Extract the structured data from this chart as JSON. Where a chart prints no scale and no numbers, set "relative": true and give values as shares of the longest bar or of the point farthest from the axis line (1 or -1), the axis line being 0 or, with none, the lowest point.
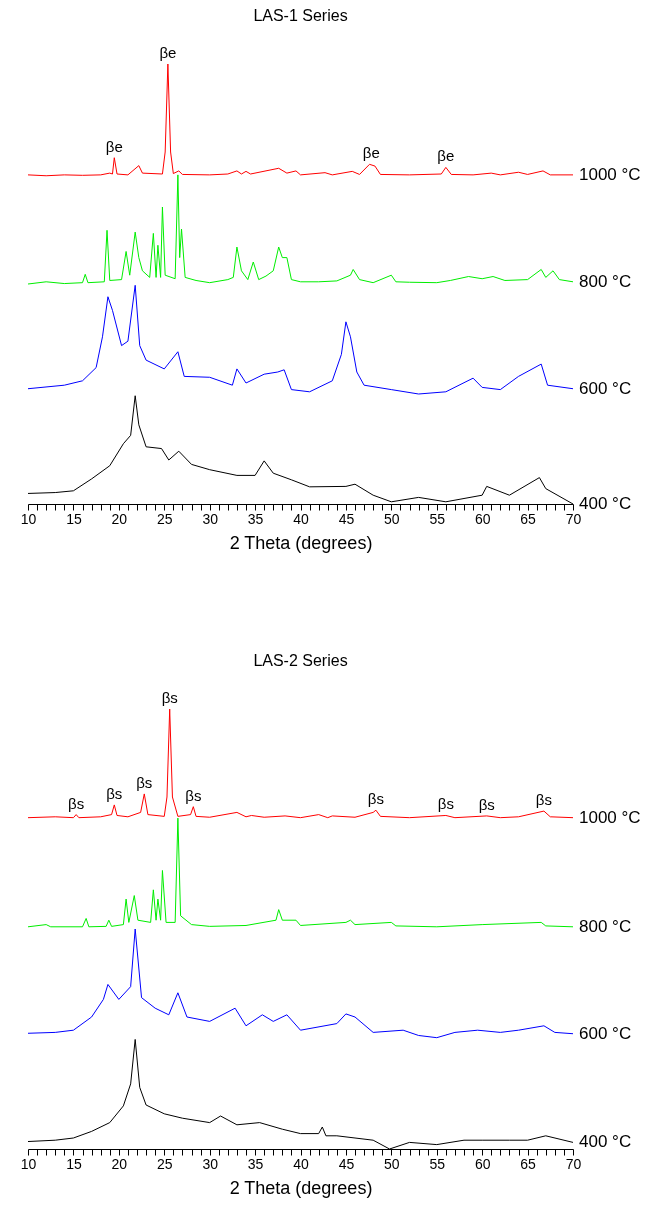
{
  "chart_data": [
    {
      "type": "line",
      "title": "LAS-1 Series",
      "xlabel": "2 Theta (degrees)",
      "relative": true,
      "xlim": [
        10,
        70
      ],
      "xticks": [
        10,
        {
          "value": 11,
          "label": null
        },
        {
          "value": 12,
          "label": null
        },
        {
          "value": 13,
          "label": null
        },
        {
          "value": 14,
          "label": null
        },
        15,
        {
          "value": 16,
          "label": null
        },
        {
          "value": 17,
          "label": null
        },
        {
          "value": 18,
          "label": null
        },
        {
          "value": 19,
          "label": null
        },
        20,
        {
          "value": 21,
          "label": null
        },
        {
          "value": 22,
          "label": null
        },
        {
          "value": 23,
          "label": null
        },
        {
          "value": 24,
          "label": null
        },
        25,
        {
          "value": 26,
          "label": null
        },
        {
          "value": 27,
          "label": null
        },
        {
          "value": 28,
          "label": null
        },
        {
          "value": 29,
          "label": null
        },
        30,
        {
          "value": 31,
          "label": null
        },
        {
          "value": 32,
          "label": null
        },
        {
          "value": 33,
          "label": null
        },
        {
          "value": 34,
          "label": null
        },
        35,
        {
          "value": 36,
          "label": null
        },
        {
          "value": 37,
          "label": null
        },
        {
          "value": 38,
          "label": null
        },
        {
          "value": 39,
          "label": null
        },
        40,
        {
          "value": 41,
          "label": null
        },
        {
          "value": 42,
          "label": null
        },
        {
          "value": 43,
          "label": null
        },
        {
          "value": 44,
          "label": null
        },
        45,
        {
          "value": 46,
          "label": null
        },
        {
          "value": 47,
          "label": null
        },
        {
          "value": 48,
          "label": null
        },
        {
          "value": 49,
          "label": null
        },
        50,
        {
          "value": 51,
          "label": null
        },
        {
          "value": 52,
          "label": null
        },
        {
          "value": 53,
          "label": null
        },
        {
          "value": 54,
          "label": null
        },
        55,
        {
          "value": 56,
          "label": null
        },
        {
          "value": 57,
          "label": null
        },
        {
          "value": 58,
          "label": null
        },
        {
          "value": 59,
          "label": null
        },
        60,
        {
          "value": 61,
          "label": null
        },
        {
          "value": 62,
          "label": null
        },
        {
          "value": 63,
          "label": null
        },
        {
          "value": 64,
          "label": null
        },
        65,
        {
          "value": 66,
          "label": null
        },
        {
          "value": 67,
          "label": null
        },
        {
          "value": 68,
          "label": null
        },
        {
          "value": 69,
          "label": null
        },
        70
      ],
      "series": [
        {
          "name": "1000 °C",
          "color": "#ff0000",
          "x": [
            10,
            12,
            14,
            16,
            18,
            19,
            19.3,
            19.5,
            19.8,
            21,
            22.2,
            22.6,
            24.8,
            25.1,
            25.4,
            25.7,
            26,
            26.6,
            27,
            30,
            32,
            33,
            33.5,
            34,
            34.5,
            37.6,
            38.5,
            39.5,
            40,
            42.7,
            43.5,
            45.7,
            46.5,
            47.6,
            48.2,
            48.8,
            52,
            55.5,
            56,
            56.6,
            59,
            61,
            62,
            64,
            65,
            66.7,
            67.5,
            70
          ],
          "values": [
            0.748,
            0.746,
            0.748,
            0.747,
            0.748,
            0.752,
            0.75,
            0.787,
            0.75,
            0.748,
            0.769,
            0.752,
            0.75,
            0.8,
            1.0,
            0.8,
            0.751,
            0.757,
            0.749,
            0.748,
            0.75,
            0.757,
            0.75,
            0.756,
            0.75,
            0.763,
            0.752,
            0.757,
            0.748,
            0.753,
            0.748,
            0.756,
            0.749,
            0.772,
            0.768,
            0.749,
            0.748,
            0.75,
            0.765,
            0.749,
            0.748,
            0.752,
            0.748,
            0.754,
            0.749,
            0.757,
            0.748,
            0.748
          ]
        },
        {
          "name": "800 °C",
          "color": "#00ee00",
          "x": [
            10,
            12,
            14,
            16,
            16.3,
            16.6,
            18.4,
            18.7,
            19,
            20.3,
            20.8,
            21.2,
            21.8,
            22.2,
            22.6,
            23.4,
            23.8,
            24.1,
            24.3,
            24.6,
            24.8,
            25.1,
            26.2,
            26.5,
            26.7,
            26.9,
            27.3,
            28.5,
            30,
            32,
            32.6,
            33,
            33.5,
            34.2,
            34.8,
            35.4,
            36.2,
            37,
            37.6,
            38,
            38.5,
            39,
            40,
            42,
            44,
            45.5,
            45.8,
            46.5,
            48,
            50,
            50.5,
            52,
            55,
            56.5,
            58.5,
            60,
            61.2,
            62.5,
            65,
            66.5,
            67,
            67.8,
            68.5,
            70
          ],
          "values": [
            0.5,
            0.505,
            0.501,
            0.503,
            0.522,
            0.503,
            0.505,
            0.622,
            0.508,
            0.51,
            0.574,
            0.52,
            0.618,
            0.56,
            0.53,
            0.515,
            0.615,
            0.515,
            0.588,
            0.515,
            0.675,
            0.52,
            0.512,
            0.748,
            0.56,
            0.625,
            0.515,
            0.508,
            0.503,
            0.51,
            0.515,
            0.584,
            0.53,
            0.51,
            0.55,
            0.51,
            0.518,
            0.53,
            0.584,
            0.56,
            0.56,
            0.51,
            0.505,
            0.505,
            0.507,
            0.52,
            0.533,
            0.51,
            0.503,
            0.52,
            0.505,
            0.504,
            0.503,
            0.508,
            0.517,
            0.512,
            0.517,
            0.508,
            0.51,
            0.533,
            0.515,
            0.53,
            0.51,
            0.505
          ]
        },
        {
          "name": "600 °C",
          "color": "#0000ff",
          "x": [
            10,
            14,
            16,
            17.5,
            18.2,
            18.8,
            19.3,
            20.3,
            21,
            21.8,
            22.3,
            23,
            25,
            26.5,
            27.2,
            30,
            32.5,
            33,
            34,
            36,
            37.5,
            38.2,
            39,
            41,
            43.5,
            44.5,
            45,
            45.5,
            46.2,
            47,
            50,
            53,
            56,
            59,
            60,
            62,
            64,
            66.5,
            67.2,
            70
          ],
          "values": [
            0.262,
            0.27,
            0.28,
            0.31,
            0.38,
            0.471,
            0.44,
            0.36,
            0.37,
            0.497,
            0.36,
            0.327,
            0.307,
            0.346,
            0.29,
            0.288,
            0.27,
            0.307,
            0.275,
            0.295,
            0.3,
            0.305,
            0.26,
            0.255,
            0.28,
            0.34,
            0.414,
            0.38,
            0.3,
            0.27,
            0.26,
            0.25,
            0.255,
            0.286,
            0.265,
            0.26,
            0.29,
            0.318,
            0.27,
            0.262
          ]
        },
        {
          "name": "400 °C",
          "color": "#000000",
          "x": [
            10,
            13,
            15,
            17,
            19,
            20.5,
            21.3,
            21.8,
            22.2,
            23,
            24.7,
            25.5,
            26.6,
            28,
            30,
            33,
            35,
            36,
            37,
            39,
            41,
            45,
            46,
            48,
            50,
            53,
            56,
            60,
            60.5,
            63,
            66.3,
            67,
            70
          ],
          "values": [
            0.024,
            0.026,
            0.03,
            0.057,
            0.087,
            0.137,
            0.156,
            0.246,
            0.18,
            0.13,
            0.126,
            0.1,
            0.12,
            0.09,
            0.078,
            0.065,
            0.065,
            0.098,
            0.07,
            0.055,
            0.039,
            0.04,
            0.045,
            0.02,
            0.005,
            0.015,
            0.005,
            0.02,
            0.04,
            0.02,
            0.06,
            0.035,
            0.0
          ]
        }
      ],
      "annotations": [
        {
          "text": "βe",
          "x": 19.5,
          "y": 0.787
        },
        {
          "text": "βe",
          "x": 25.4,
          "y": 1.0
        },
        {
          "text": "βe",
          "x": 47.8,
          "y": 0.773
        },
        {
          "text": "βe",
          "x": 56,
          "y": 0.765
        }
      ]
    },
    {
      "type": "line",
      "title": "LAS-2 Series",
      "xlabel": "2 Theta (degrees)",
      "relative": true,
      "xlim": [
        10,
        70
      ],
      "xticks": [
        10,
        {
          "value": 11,
          "label": null
        },
        {
          "value": 12,
          "label": null
        },
        {
          "value": 13,
          "label": null
        },
        {
          "value": 14,
          "label": null
        },
        15,
        {
          "value": 16,
          "label": null
        },
        {
          "value": 17,
          "label": null
        },
        {
          "value": 18,
          "label": null
        },
        {
          "value": 19,
          "label": null
        },
        20,
        {
          "value": 21,
          "label": null
        },
        {
          "value": 22,
          "label": null
        },
        {
          "value": 23,
          "label": null
        },
        {
          "value": 24,
          "label": null
        },
        25,
        {
          "value": 26,
          "label": null
        },
        {
          "value": 27,
          "label": null
        },
        {
          "value": 28,
          "label": null
        },
        {
          "value": 29,
          "label": null
        },
        30,
        {
          "value": 31,
          "label": null
        },
        {
          "value": 32,
          "label": null
        },
        {
          "value": 33,
          "label": null
        },
        {
          "value": 34,
          "label": null
        },
        35,
        {
          "value": 36,
          "label": null
        },
        {
          "value": 37,
          "label": null
        },
        {
          "value": 38,
          "label": null
        },
        {
          "value": 39,
          "label": null
        },
        40,
        {
          "value": 41,
          "label": null
        },
        {
          "value": 42,
          "label": null
        },
        {
          "value": 43,
          "label": null
        },
        {
          "value": 44,
          "label": null
        },
        45,
        {
          "value": 46,
          "label": null
        },
        {
          "value": 47,
          "label": null
        },
        {
          "value": 48,
          "label": null
        },
        {
          "value": 49,
          "label": null
        },
        50,
        {
          "value": 51,
          "label": null
        },
        {
          "value": 52,
          "label": null
        },
        {
          "value": 53,
          "label": null
        },
        {
          "value": 54,
          "label": null
        },
        55,
        {
          "value": 56,
          "label": null
        },
        {
          "value": 57,
          "label": null
        },
        {
          "value": 58,
          "label": null
        },
        {
          "value": 59,
          "label": null
        },
        60,
        {
          "value": 61,
          "label": null
        },
        {
          "value": 62,
          "label": null
        },
        {
          "value": 63,
          "label": null
        },
        {
          "value": 64,
          "label": null
        },
        65,
        {
          "value": 66,
          "label": null
        },
        {
          "value": 67,
          "label": null
        },
        {
          "value": 68,
          "label": null
        },
        {
          "value": 69,
          "label": null
        },
        70
      ],
      "series": [
        {
          "name": "1000 °C",
          "color": "#ff0000",
          "x": [
            10,
            13,
            15,
            15.3,
            15.6,
            18,
            19.2,
            19.5,
            19.8,
            21,
            22.4,
            22.8,
            23.2,
            25,
            25.3,
            25.6,
            25.9,
            26.5,
            27.9,
            28.2,
            28.5,
            30,
            33,
            34,
            34.6,
            36,
            38.3,
            40,
            42,
            43,
            43.5,
            46,
            48,
            48.3,
            48.8,
            52,
            56,
            57,
            60.5,
            62,
            64,
            66.8,
            67.5,
            70
          ],
          "values": [
            0.753,
            0.755,
            0.753,
            0.76,
            0.753,
            0.755,
            0.76,
            0.782,
            0.758,
            0.755,
            0.765,
            0.807,
            0.76,
            0.756,
            0.8,
            1.0,
            0.8,
            0.756,
            0.76,
            0.778,
            0.756,
            0.754,
            0.765,
            0.755,
            0.758,
            0.754,
            0.757,
            0.753,
            0.76,
            0.753,
            0.757,
            0.754,
            0.765,
            0.77,
            0.756,
            0.753,
            0.758,
            0.753,
            0.757,
            0.753,
            0.755,
            0.768,
            0.755,
            0.753
          ]
        },
        {
          "name": "800 °C",
          "color": "#00ee00",
          "x": [
            10,
            12,
            12.5,
            16,
            16.4,
            16.7,
            18.6,
            18.9,
            19.2,
            20.5,
            20.8,
            21.1,
            21.7,
            22.1,
            23.5,
            23.8,
            24.1,
            24.3,
            24.6,
            24.8,
            25.2,
            26.2,
            26.5,
            26.8,
            28,
            30,
            34,
            37.3,
            37.6,
            38,
            39.5,
            40,
            45,
            45.5,
            46,
            50,
            50.5,
            55,
            60,
            66.5,
            67,
            70
          ],
          "values": [
            0.505,
            0.51,
            0.505,
            0.505,
            0.524,
            0.505,
            0.506,
            0.52,
            0.506,
            0.51,
            0.568,
            0.515,
            0.576,
            0.52,
            0.515,
            0.589,
            0.52,
            0.568,
            0.52,
            0.633,
            0.515,
            0.515,
            0.752,
            0.53,
            0.51,
            0.506,
            0.508,
            0.52,
            0.544,
            0.52,
            0.52,
            0.508,
            0.515,
            0.52,
            0.51,
            0.515,
            0.507,
            0.505,
            0.51,
            0.515,
            0.507,
            0.505
          ]
        },
        {
          "name": "600 °C",
          "color": "#0000ff",
          "x": [
            10,
            13,
            15,
            17,
            18.3,
            18.8,
            20,
            21.3,
            21.8,
            22.5,
            24,
            25.5,
            26.5,
            27.5,
            30,
            32.8,
            34,
            35.8,
            37,
            38.5,
            40,
            44,
            45,
            46,
            48,
            51.3,
            53,
            55,
            57,
            59.5,
            62,
            64,
            66.8,
            68,
            70
          ],
          "values": [
            0.263,
            0.265,
            0.27,
            0.3,
            0.34,
            0.374,
            0.34,
            0.369,
            0.5,
            0.344,
            0.32,
            0.305,
            0.355,
            0.3,
            0.29,
            0.32,
            0.28,
            0.305,
            0.29,
            0.305,
            0.27,
            0.285,
            0.307,
            0.3,
            0.265,
            0.27,
            0.258,
            0.253,
            0.265,
            0.27,
            0.265,
            0.27,
            0.28,
            0.265,
            0.262
          ]
        },
        {
          "name": "400 °C",
          "color": "#000000",
          "x": [
            10,
            13,
            15,
            17,
            19,
            20.5,
            21.3,
            21.8,
            22.3,
            23,
            25,
            27,
            30,
            31.2,
            33,
            35.5,
            38,
            40,
            42,
            42.4,
            42.8,
            44,
            48,
            49.8,
            52,
            55,
            58,
            60,
            63,
            65,
            67,
            70
          ],
          "values": [
            0.017,
            0.02,
            0.025,
            0.04,
            0.06,
            0.098,
            0.148,
            0.249,
            0.14,
            0.1,
            0.08,
            0.07,
            0.06,
            0.075,
            0.055,
            0.06,
            0.045,
            0.035,
            0.035,
            0.05,
            0.03,
            0.03,
            0.02,
            0.0,
            0.015,
            0.01,
            0.02,
            0.02,
            0.02,
            0.02,
            0.03,
            0.015
          ]
        }
      ],
      "annotations": [
        {
          "text": "βs",
          "x": 15.3,
          "y": 0.76
        },
        {
          "text": "βs",
          "x": 19.5,
          "y": 0.782
        },
        {
          "text": "βs",
          "x": 22.8,
          "y": 0.807
        },
        {
          "text": "βs",
          "x": 25.6,
          "y": 1.0
        },
        {
          "text": "βs",
          "x": 28.2,
          "y": 0.778
        },
        {
          "text": "βs",
          "x": 48.3,
          "y": 0.77
        },
        {
          "text": "βs",
          "x": 56,
          "y": 0.758
        },
        {
          "text": "βs",
          "x": 60.5,
          "y": 0.757
        },
        {
          "text": "βs",
          "x": 66.8,
          "y": 0.768
        }
      ]
    }
  ]
}
